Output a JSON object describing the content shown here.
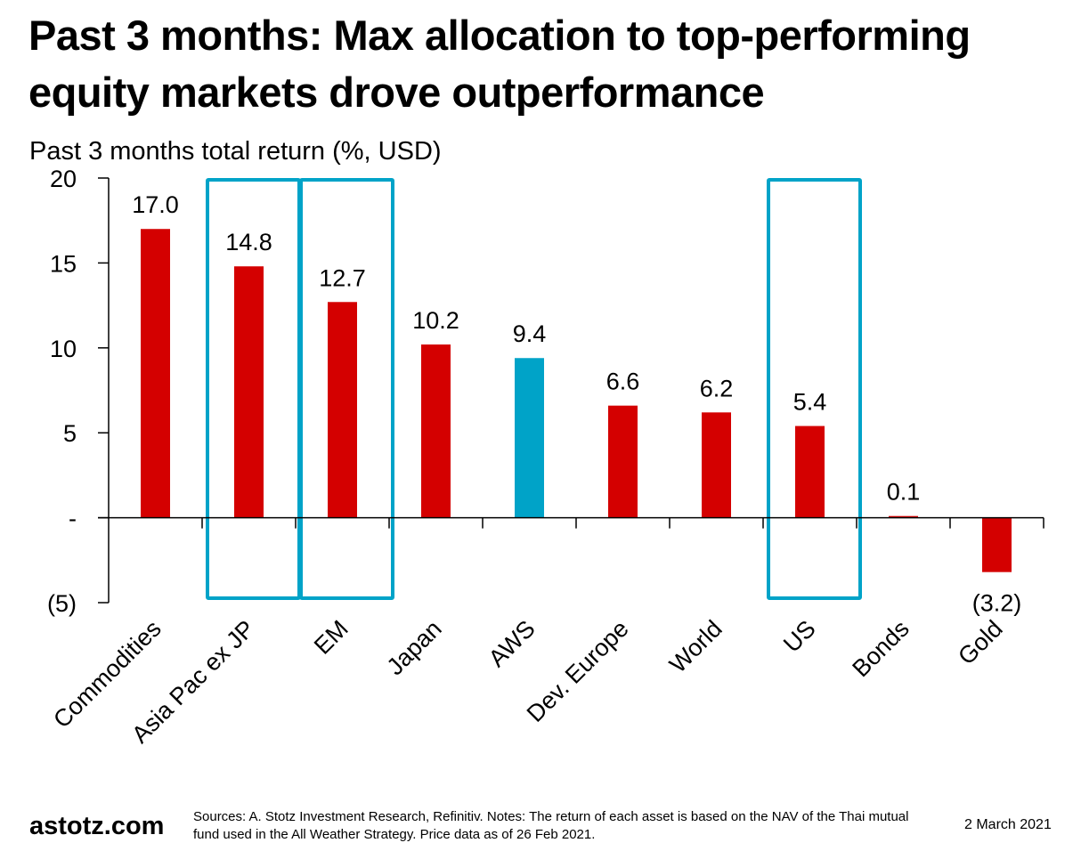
{
  "header": {
    "title": "Past 3 months: Max allocation to top-performing equity markets drove outperformance",
    "subtitle": "Past 3 months total return (%, USD)"
  },
  "footer": {
    "brand": "astotz.com",
    "notes": "Sources: A. Stotz Investment Research, Refinitiv. Notes: The return of each asset is based on the NAV of the Thai mutual fund used in the All Weather Strategy. Price data as of 26 Feb 2021.",
    "date": "2 March 2021"
  },
  "colors": {
    "bar_default": "#d40000",
    "bar_highlight": "#00a3c8",
    "highlight_box": "#00a3c8",
    "axis": "#000000"
  },
  "chart_data": {
    "type": "bar",
    "title": "Past 3 months: Max allocation to top-performing equity markets drove outperformance",
    "ylabel": "Past 3 months total return (%, USD)",
    "xlabel": "",
    "categories": [
      "Commodities",
      "Asia Pac ex JP",
      "EM",
      "Japan",
      "AWS",
      "Dev. Europe",
      "World",
      "US",
      "Bonds",
      "Gold"
    ],
    "values": [
      17.0,
      14.8,
      12.7,
      10.2,
      9.4,
      6.6,
      6.2,
      5.4,
      0.1,
      -3.2
    ],
    "data_labels": [
      "17.0",
      "14.8",
      "12.7",
      "10.2",
      "9.4",
      "6.6",
      "6.2",
      "5.4",
      "0.1",
      "(3.2)"
    ],
    "bar_colors": [
      "default",
      "default",
      "default",
      "default",
      "highlight",
      "default",
      "default",
      "default",
      "default",
      "default"
    ],
    "highlighted_categories": [
      "Asia Pac ex JP",
      "EM",
      "US"
    ],
    "ylim": [
      -5,
      20
    ],
    "yticks": [
      20,
      15,
      10,
      5,
      0,
      -5
    ],
    "ytick_labels": [
      "20",
      "15",
      "10",
      "5",
      "-",
      "(5)"
    ],
    "grid": false,
    "legend": "none",
    "x_label_rotation": "-45 degrees"
  }
}
